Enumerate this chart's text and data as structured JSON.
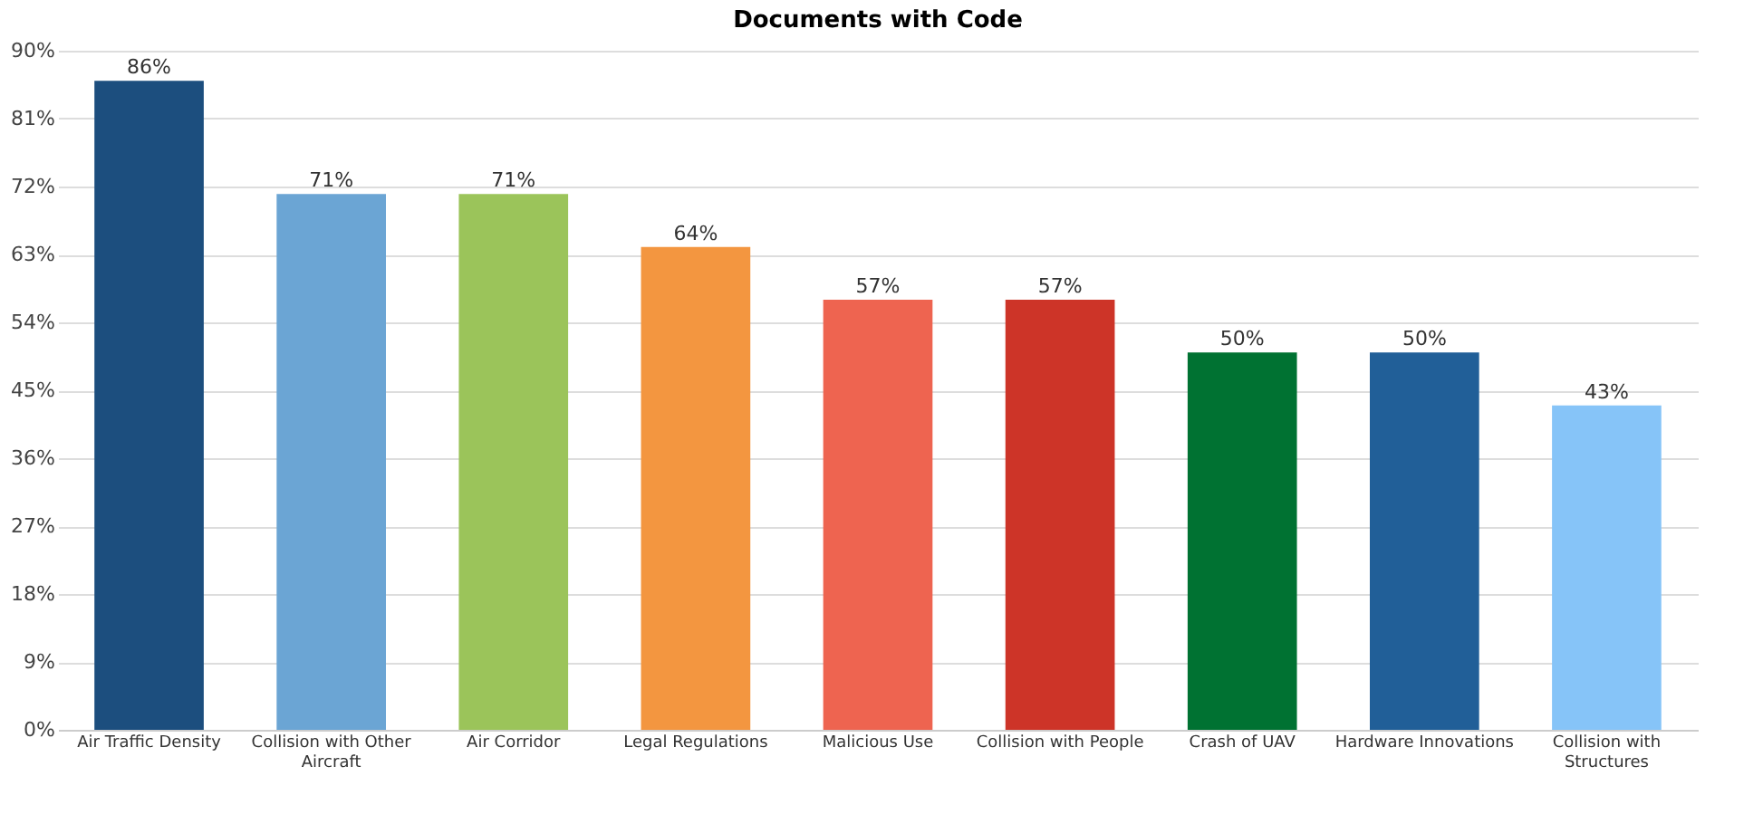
{
  "chart_data": {
    "type": "bar",
    "title": "Documents with Code",
    "categories": [
      "Air Traffic Density",
      "Collision with Other Aircraft",
      "Air Corridor",
      "Legal Regulations",
      "Malicious Use",
      "Collision with People",
      "Crash of UAV",
      "Hardware Innovations",
      "Collision with Structures"
    ],
    "values": [
      86,
      71,
      71,
      64,
      57,
      57,
      50,
      50,
      43
    ],
    "colors": [
      "#1c4e7e",
      "#6ba5d4",
      "#9bc45a",
      "#f39640",
      "#ee6450",
      "#cd3428",
      "#007232",
      "#215f98",
      "#86c4f8"
    ],
    "value_labels": [
      "86%",
      "71%",
      "71%",
      "64%",
      "57%",
      "57%",
      "50%",
      "50%",
      "43%"
    ],
    "ylim": [
      0,
      90
    ],
    "yticks": [
      {
        "value": 0,
        "label": "0%"
      },
      {
        "value": 9,
        "label": "9%"
      },
      {
        "value": 18,
        "label": "18%"
      },
      {
        "value": 27,
        "label": "27%"
      },
      {
        "value": 36,
        "label": "36%"
      },
      {
        "value": 45,
        "label": "45%"
      },
      {
        "value": 54,
        "label": "54%"
      },
      {
        "value": 63,
        "label": "63%"
      },
      {
        "value": 72,
        "label": "72%"
      },
      {
        "value": 81,
        "label": "81%"
      },
      {
        "value": 90,
        "label": "90%"
      }
    ],
    "grid": "y"
  }
}
